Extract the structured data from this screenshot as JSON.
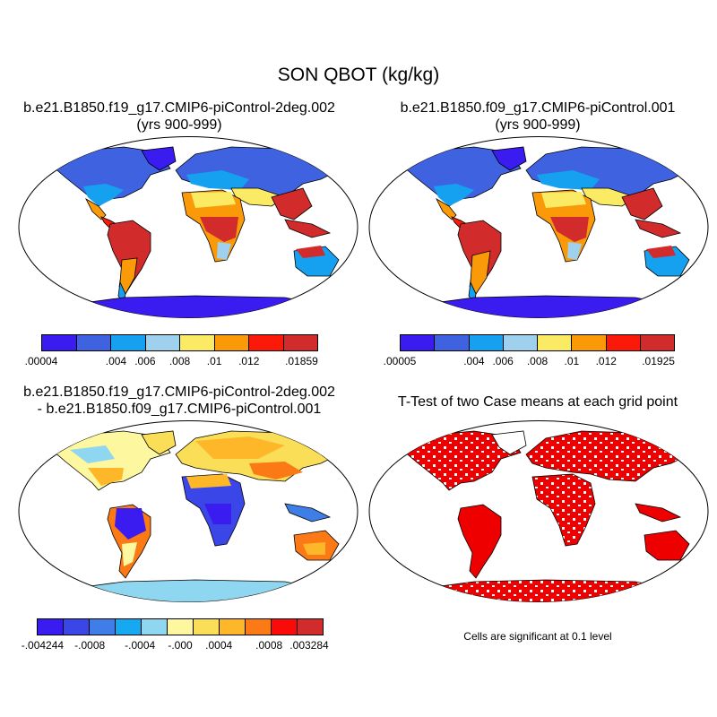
{
  "title": "SON QBOT (kg/kg)",
  "panels": {
    "top_left": {
      "title_line1": "b.e21.B1850.f19_g17.CMIP6-piControl-2deg.002",
      "title_line2": "(yrs 900-999)",
      "colorbar": {
        "colors": [
          "#3a1cf0",
          "#3f62e0",
          "#16a0f0",
          "#9fd0ee",
          "#fbea63",
          "#fb9a09",
          "#fb1a0a",
          "#d22b2b"
        ],
        "labels": [
          ".00004",
          ".004",
          ".006",
          ".008",
          ".01",
          ".012",
          ".01859"
        ]
      }
    },
    "top_right": {
      "title_line1": "b.e21.B1850.f09_g17.CMIP6-piControl.001",
      "title_line2": "(yrs 900-999)",
      "colorbar": {
        "colors": [
          "#3a1cf0",
          "#3f62e0",
          "#16a0f0",
          "#9fd0ee",
          "#fbea63",
          "#fb9a09",
          "#fb1a0a",
          "#d22b2b"
        ],
        "labels": [
          ".00005",
          ".004",
          ".006",
          ".008",
          ".01",
          ".012",
          ".01925"
        ]
      }
    },
    "bottom_left": {
      "title_line1": "b.e21.B1850.f19_g17.CMIP6-piControl-2deg.002",
      "title_line2": "- b.e21.B1850.f09_g17.CMIP6-piControl.001",
      "colorbar": {
        "colors": [
          "#3a1cf0",
          "#3a46e8",
          "#3f7ee6",
          "#16a8f0",
          "#8fd6f0",
          "#fdf7a0",
          "#fbde57",
          "#fdb728",
          "#fb7a15",
          "#fb0a0a",
          "#d22b2b"
        ],
        "labels": [
          "-.004244",
          "-.0008",
          "-.0004",
          "-.000",
          ".0004",
          ".0008",
          ".003284"
        ]
      }
    },
    "bottom_right": {
      "title_line1": "T-Test of two Case means at each grid point",
      "note": "Cells are significant at 0.1 level",
      "fill_color": "#ee0000"
    }
  },
  "colors": {
    "land_outline": "#000000",
    "ocean": "#ffffff"
  }
}
